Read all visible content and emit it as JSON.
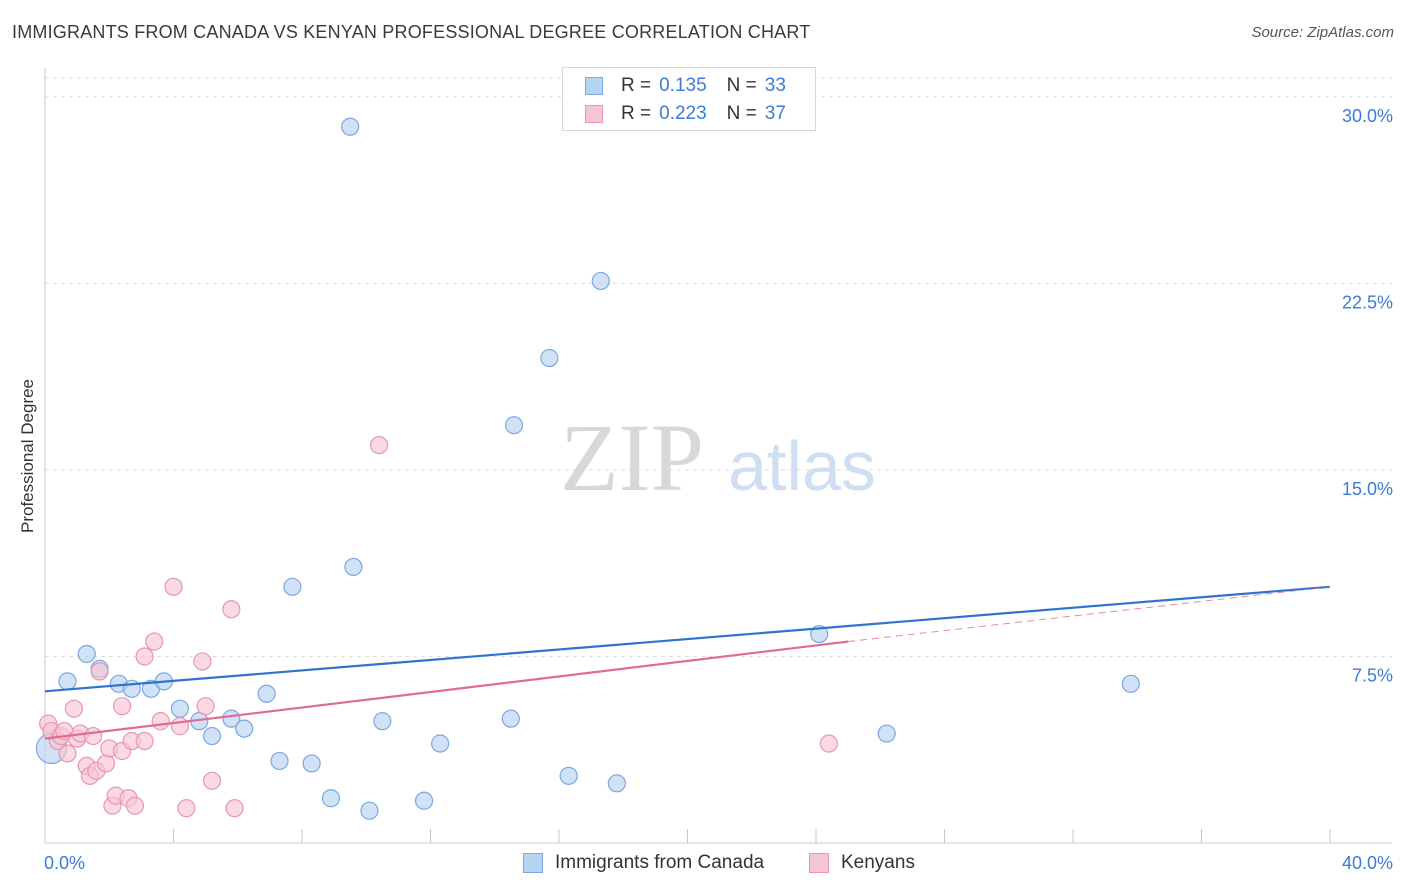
{
  "header": {
    "title": "IMMIGRANTS FROM CANADA VS KENYAN PROFESSIONAL DEGREE CORRELATION CHART",
    "source": "Source: ZipAtlas.com"
  },
  "watermark": {
    "zip": "ZIP",
    "atlas": "atlas"
  },
  "legend": {
    "r_label": "R =",
    "n_label": "N =",
    "rows": [
      {
        "r": "0.135",
        "n": "33"
      },
      {
        "r": "0.223",
        "n": "37"
      }
    ]
  },
  "colors": {
    "canada_fill": "#b9d3f3",
    "canada_stroke": "#7aa8e0",
    "canada_line": "#2f73cf",
    "kenya_fill": "#f7c4d3",
    "kenya_stroke": "#e896b1",
    "kenya_line": "#e06a98",
    "axis_label": "#3d7bd6"
  },
  "chart_data": {
    "type": "scatter",
    "title": "IMMIGRANTS FROM CANADA VS KENYAN PROFESSIONAL DEGREE CORRELATION CHART",
    "xlabel": "",
    "ylabel": "Professional Degree",
    "xlim": [
      0,
      40
    ],
    "ylim": [
      0,
      31
    ],
    "x_tick_labels": [
      "0.0%",
      "40.0%"
    ],
    "y_ticks": [
      7.5,
      15.0,
      22.5,
      30.0
    ],
    "y_tick_labels": [
      "7.5%",
      "15.0%",
      "22.5%",
      "30.0%"
    ],
    "grid": true,
    "legend_position": "top-center",
    "series": [
      {
        "name": "Immigrants from Canada",
        "r": 0.135,
        "n": 33,
        "trend": {
          "x": [
            0,
            40
          ],
          "y": [
            6.1,
            10.3
          ]
        },
        "points": [
          {
            "x": 0.2,
            "y": 3.8,
            "big": true
          },
          {
            "x": 0.7,
            "y": 6.5
          },
          {
            "x": 1.3,
            "y": 7.6
          },
          {
            "x": 1.7,
            "y": 7.0
          },
          {
            "x": 2.3,
            "y": 6.4
          },
          {
            "x": 2.7,
            "y": 6.2
          },
          {
            "x": 3.3,
            "y": 6.2
          },
          {
            "x": 3.7,
            "y": 6.5
          },
          {
            "x": 4.2,
            "y": 5.4
          },
          {
            "x": 4.8,
            "y": 4.9
          },
          {
            "x": 5.2,
            "y": 4.3
          },
          {
            "x": 5.8,
            "y": 5.0
          },
          {
            "x": 6.2,
            "y": 4.6
          },
          {
            "x": 6.9,
            "y": 6.0
          },
          {
            "x": 7.3,
            "y": 3.3
          },
          {
            "x": 7.7,
            "y": 10.3
          },
          {
            "x": 8.3,
            "y": 3.2
          },
          {
            "x": 8.9,
            "y": 1.8
          },
          {
            "x": 9.5,
            "y": 28.8
          },
          {
            "x": 9.6,
            "y": 11.1
          },
          {
            "x": 10.1,
            "y": 1.3
          },
          {
            "x": 10.5,
            "y": 4.9
          },
          {
            "x": 11.8,
            "y": 1.7
          },
          {
            "x": 12.3,
            "y": 4.0
          },
          {
            "x": 14.5,
            "y": 5.0
          },
          {
            "x": 14.6,
            "y": 16.8
          },
          {
            "x": 15.7,
            "y": 19.5
          },
          {
            "x": 16.3,
            "y": 2.7
          },
          {
            "x": 17.3,
            "y": 22.6
          },
          {
            "x": 17.8,
            "y": 2.4
          },
          {
            "x": 24.1,
            "y": 8.4
          },
          {
            "x": 26.2,
            "y": 4.4
          },
          {
            "x": 33.8,
            "y": 6.4
          }
        ]
      },
      {
        "name": "Kenyans",
        "r": 0.223,
        "n": 37,
        "trend": {
          "x": [
            0,
            25
          ],
          "y": [
            4.2,
            8.1
          ]
        },
        "trend_ext": {
          "x": [
            25,
            40
          ],
          "y": [
            8.1,
            10.3
          ]
        },
        "points": [
          {
            "x": 0.1,
            "y": 4.8
          },
          {
            "x": 0.2,
            "y": 4.5
          },
          {
            "x": 0.4,
            "y": 4.1
          },
          {
            "x": 0.5,
            "y": 4.3
          },
          {
            "x": 0.6,
            "y": 4.5
          },
          {
            "x": 0.7,
            "y": 3.6
          },
          {
            "x": 0.9,
            "y": 5.4
          },
          {
            "x": 1.0,
            "y": 4.2
          },
          {
            "x": 1.1,
            "y": 4.4
          },
          {
            "x": 1.3,
            "y": 3.1
          },
          {
            "x": 1.4,
            "y": 2.7
          },
          {
            "x": 1.5,
            "y": 4.3
          },
          {
            "x": 1.6,
            "y": 2.9
          },
          {
            "x": 1.7,
            "y": 6.9
          },
          {
            "x": 1.9,
            "y": 3.2
          },
          {
            "x": 2.0,
            "y": 3.8
          },
          {
            "x": 2.1,
            "y": 1.5
          },
          {
            "x": 2.2,
            "y": 1.9
          },
          {
            "x": 2.4,
            "y": 3.7
          },
          {
            "x": 2.4,
            "y": 5.5
          },
          {
            "x": 2.6,
            "y": 1.8
          },
          {
            "x": 2.7,
            "y": 4.1
          },
          {
            "x": 2.8,
            "y": 1.5
          },
          {
            "x": 3.1,
            "y": 4.1
          },
          {
            "x": 3.1,
            "y": 7.5
          },
          {
            "x": 3.4,
            "y": 8.1
          },
          {
            "x": 3.6,
            "y": 4.9
          },
          {
            "x": 4.0,
            "y": 10.3
          },
          {
            "x": 4.2,
            "y": 4.7
          },
          {
            "x": 4.4,
            "y": 1.4
          },
          {
            "x": 4.9,
            "y": 7.3
          },
          {
            "x": 5.0,
            "y": 5.5
          },
          {
            "x": 5.2,
            "y": 2.5
          },
          {
            "x": 5.8,
            "y": 9.4
          },
          {
            "x": 5.9,
            "y": 1.4
          },
          {
            "x": 10.4,
            "y": 16.0
          },
          {
            "x": 24.4,
            "y": 4.0
          }
        ]
      }
    ]
  }
}
